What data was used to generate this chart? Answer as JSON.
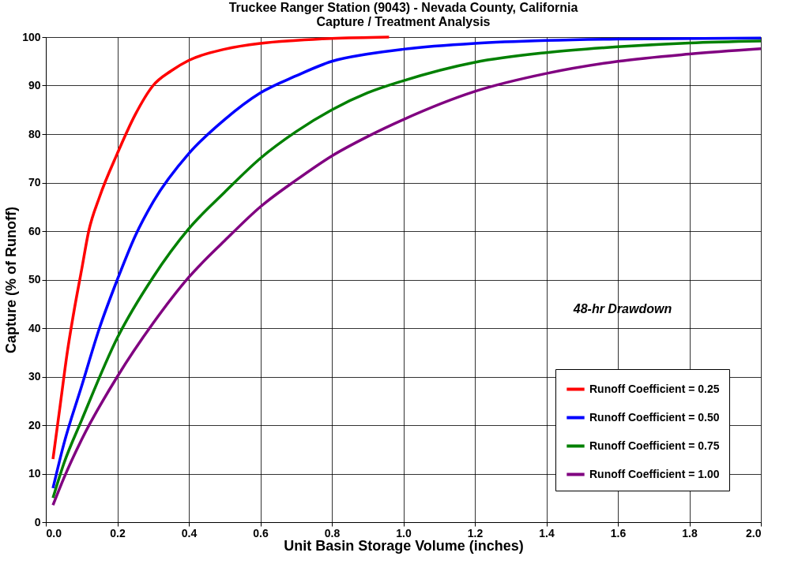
{
  "chart_data": {
    "type": "line",
    "title": "Truckee Ranger Station (9043) - Nevada County, California",
    "subtitle": "Capture / Treatment Analysis",
    "xlabel": "Unit Basin Storage Volume (inches)",
    "ylabel": "Capture (% of Runoff)",
    "annotations": [
      "48-hr Drawdown"
    ],
    "xlim": [
      0,
      2
    ],
    "xticks": [
      {
        "value": 0,
        "label": "0.0"
      },
      0.2,
      0.4,
      0.6,
      0.8,
      {
        "value": 1,
        "label": "1.0"
      },
      1.2,
      1.4,
      1.6,
      1.8,
      {
        "value": 2,
        "label": "2.0"
      }
    ],
    "ylim": [
      0,
      100
    ],
    "yticks": [
      0,
      10,
      20,
      30,
      40,
      50,
      60,
      70,
      80,
      90,
      100
    ],
    "grid": true,
    "legend": "bottom right",
    "marker": "none",
    "line_style": "solid",
    "series": [
      {
        "name": "Runoff Coefficient = 0.25",
        "color": "#ff0000",
        "x": [
          0.02,
          0.04,
          0.06,
          0.08,
          0.1,
          0.12,
          0.15,
          0.2,
          0.25,
          0.3,
          0.35,
          0.4,
          0.5,
          0.6,
          0.7,
          0.8,
          0.96
        ],
        "values": [
          13,
          24,
          35,
          44,
          52,
          60,
          67,
          76,
          84,
          90,
          93,
          95.2,
          97.5,
          98.7,
          99.3,
          99.7,
          100
        ]
      },
      {
        "name": "Runoff Coefficient = 0.50",
        "color": "#0000ff",
        "x": [
          0.02,
          0.05,
          0.1,
          0.15,
          0.2,
          0.25,
          0.3,
          0.4,
          0.5,
          0.6,
          0.7,
          0.8,
          0.9,
          1.0,
          1.2,
          1.4,
          1.6,
          2.0
        ],
        "values": [
          7,
          16,
          28,
          40,
          50,
          59,
          66,
          76,
          83,
          88.5,
          92,
          95,
          96.5,
          97.5,
          98.7,
          99.3,
          99.6,
          99.8
        ]
      },
      {
        "name": "Runoff Coefficient = 0.75",
        "color": "#008000",
        "x": [
          0.02,
          0.05,
          0.1,
          0.2,
          0.3,
          0.4,
          0.5,
          0.6,
          0.7,
          0.8,
          0.9,
          1.0,
          1.2,
          1.4,
          1.6,
          1.8,
          2.0
        ],
        "values": [
          5,
          12,
          21,
          38,
          50.5,
          60.5,
          68,
          75,
          80.5,
          85,
          88.5,
          91,
          94.8,
          96.8,
          98,
          98.8,
          99.2
        ]
      },
      {
        "name": "Runoff Coefficient = 1.00",
        "color": "#800080",
        "x": [
          0.02,
          0.05,
          0.1,
          0.2,
          0.3,
          0.4,
          0.5,
          0.6,
          0.7,
          0.8,
          0.9,
          1.0,
          1.2,
          1.4,
          1.6,
          1.8,
          2.0
        ],
        "values": [
          3.5,
          9,
          17,
          30,
          41,
          50.5,
          58,
          65,
          70.5,
          75.5,
          79.5,
          83,
          88.8,
          92.5,
          95,
          96.5,
          97.6
        ]
      }
    ]
  }
}
